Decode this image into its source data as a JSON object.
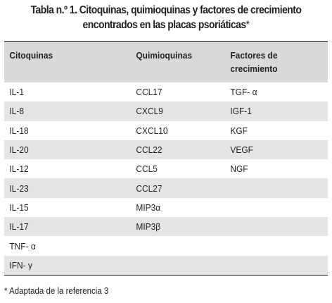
{
  "table": {
    "title_line1": "Tabla n.º 1. Citoquinas, quimioquinas y factores de crecimiento",
    "title_line2": "encontrados en las placas psoriáticas",
    "title_asterisk": "*",
    "headers": [
      "Citoquinas",
      "Quimioquinas",
      "Factores de crecimiento"
    ],
    "rows": [
      [
        "IL-1",
        "CCL17",
        "TGF- α"
      ],
      [
        "IL-8",
        "CXCL9",
        "IGF-1"
      ],
      [
        "IL-18",
        "CXCL10",
        "KGF"
      ],
      [
        "IL-20",
        "CCL22",
        "VEGF"
      ],
      [
        "IL-12",
        "CCL5",
        "NGF"
      ],
      [
        "IL-23",
        "CCL27",
        ""
      ],
      [
        "IL-15",
        "MIP3α",
        ""
      ],
      [
        "IL-17",
        "MIP3β",
        ""
      ],
      [
        "TNF- α",
        "",
        ""
      ],
      [
        "IFN- γ",
        "",
        ""
      ]
    ],
    "footnote": "* Adaptada de la referencia 3"
  },
  "colors": {
    "header_bg": "#d9d9d9",
    "stripe_bg": "#e5e5e5",
    "text": "#231f20"
  }
}
